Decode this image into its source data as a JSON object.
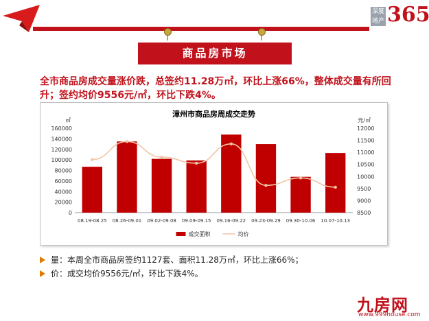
{
  "header": {
    "brand_small_top": "深度",
    "brand_small_bottom": "地产",
    "brand_number": "365"
  },
  "title_banner": "商品房市场",
  "headline": "全市商品房成交量涨价跌，总签约11.28万㎡，环比上涨66%，整体成交量有所回升；签约均价9556元/㎡，环比下跌4%。",
  "bullets": [
    {
      "text": "量：本周全市商品房签约1127套、面积11.28万㎡，环比上涨66%；"
    },
    {
      "text": "价：成交均价9556元/㎡，环比下跌4%。"
    }
  ],
  "site": {
    "name": "九房网",
    "url": "www.999house.com"
  },
  "colors": {
    "brand_red": "#c1121c",
    "bar": "#c00000",
    "line": "#f2c4a5",
    "bullet": "#e07a00"
  },
  "chart_data": {
    "type": "bar",
    "title": "漳州市商品房周成交走势",
    "y_left_unit": "㎡",
    "y_right_unit": "元/㎡",
    "categories": [
      "08.19-08.25",
      "08.26-09.01",
      "09.02-09.08",
      "09.09-09.15",
      "09.16-09.22",
      "09.23-09.29",
      "09.30-10.06",
      "10.07-10.13"
    ],
    "ylim_left": [
      0,
      160000
    ],
    "ylim_right": [
      8500,
      12000
    ],
    "yticks_left": [
      "0",
      "20000",
      "40000",
      "60000",
      "80000",
      "100000",
      "120000",
      "140000",
      "160000"
    ],
    "yticks_right": [
      "8500",
      "9000",
      "9500",
      "10000",
      "10500",
      "11000",
      "11500",
      "12000"
    ],
    "series": [
      {
        "name": "成交面积",
        "axis": "left",
        "type": "bar",
        "values": [
          87000,
          135000,
          102000,
          99000,
          148000,
          130000,
          68000,
          113000
        ]
      },
      {
        "name": "均价",
        "axis": "right",
        "type": "line",
        "values": [
          10700,
          11450,
          10800,
          10550,
          11350,
          9630,
          9940,
          9556
        ]
      }
    ],
    "legend_position": "bottom",
    "grid": false
  }
}
